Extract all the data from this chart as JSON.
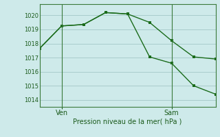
{
  "line1_x": [
    0,
    1,
    2,
    3,
    4,
    5,
    6,
    7,
    8
  ],
  "line1_y": [
    1017.65,
    1019.25,
    1019.35,
    1020.2,
    1020.1,
    1019.5,
    1018.2,
    1017.05,
    1016.9
  ],
  "line2_x": [
    0,
    1,
    2,
    3,
    4,
    5,
    6,
    7,
    8
  ],
  "line2_y": [
    1017.65,
    1019.25,
    1019.35,
    1020.2,
    1020.1,
    1017.05,
    1016.6,
    1015.0,
    1014.4
  ],
  "ven_x": 1,
  "sam_x": 6,
  "line_color": "#1a6b1a",
  "bg_color": "#ceeaea",
  "grid_color": "#a8cccc",
  "spine_color": "#3a7a3a",
  "text_color": "#1a5a1a",
  "xlabel_text": "Pression niveau de la mer( hPa )",
  "ytick_values": [
    1014,
    1015,
    1016,
    1017,
    1018,
    1019,
    1020
  ],
  "ylim": [
    1013.5,
    1020.8
  ],
  "xlim": [
    0,
    8
  ]
}
